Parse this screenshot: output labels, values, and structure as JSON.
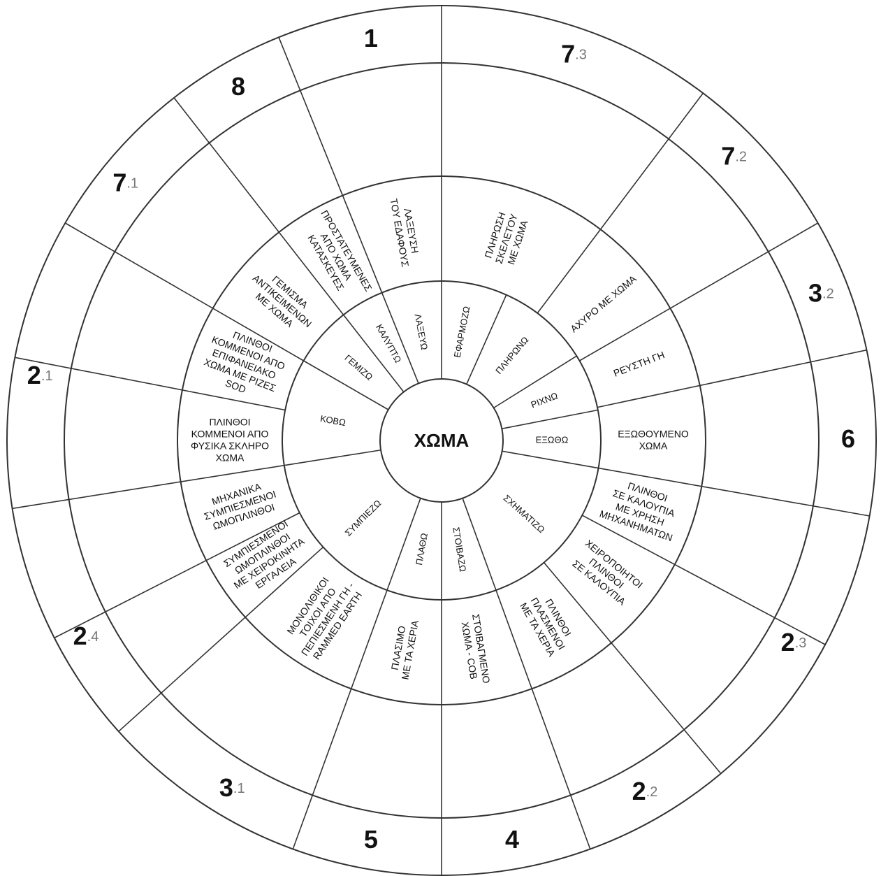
{
  "center": "ΧΩΜΑ",
  "verbs": [
    "ΛΑΞΕΥΩ",
    "ΕΦΑΡΜΟΖΩ",
    "ΠΛΗΡΩΝΩ",
    "ΡΙΧΝΩ",
    "ΕΞΩΘΩ",
    "ΣΧΗΜΑΤΙΖΩ",
    "ΣΤΟΙΒΑΖΩ",
    "ΠΛΑΘΩ",
    "ΣΥΜΠΙΕΖΩ",
    "ΚΟΒΩ",
    "ΓΕΜΙΖΩ",
    "ΚΑΛΥΠΤΩ"
  ],
  "techniques": [
    {
      "lines": [
        "ΛΑΞΕΥΣΗ",
        "ΤΟΥ ΕΔΑΦΟΥΣ"
      ]
    },
    {
      "lines": [
        "ΠΛΗΡΩΣΗ",
        "ΣΚΕΛΕΤΟΥ",
        "ΜΕ ΧΩΜΑ"
      ]
    },
    {
      "lines": [
        "ΑΧΥΡΟ ΜΕ ΧΩΜΑ"
      ]
    },
    {
      "lines": [
        "ΡΕΥΣΤΗ ΓΗ"
      ]
    },
    {
      "lines": [
        "ΕΞΩΘΟΥΜΕΝΟ",
        "ΧΩΜΑ"
      ]
    },
    {
      "lines": [
        "ΠΛΙΝΘΟΙ",
        "ΣΕ ΚΑΛΟΥΠΙΑ",
        "ΜΕ ΧΡΗΣΗ",
        "ΜΗΧΑΝΗΜΑΤΩΝ"
      ]
    },
    {
      "lines": [
        "ΧΕΙΡΟΠΟΙΗΤΟΙ",
        "ΠΛΙΝΘΟΙ",
        "ΣΕ ΚΑΛΟΥΠΙΑ"
      ]
    },
    {
      "lines": [
        "ΠΛΙΝΘΟΙ",
        "ΠΛΑΣΜΕΝΟΙ",
        "ΜΕ ΤΑ ΧΕΡΙΑ"
      ]
    },
    {
      "lines": [
        "ΣΤΟΙΒΑΓΜΕΝΟ",
        "ΧΩΜΑ - COB"
      ]
    },
    {
      "lines": [
        "ΠΛΑΣΙΜΟ",
        "ΜΕ ΤΑ ΧΕΡΙΑ"
      ]
    },
    {
      "lines": [
        "ΜΟΝΟΛΙΘΙΚΟΙ",
        "ΤΟΙΧΟΙ ΑΠΟ",
        "ΠΕΠΙΕΣΜΕΝΗ ΓΗ -",
        "RAMMED EARTH"
      ]
    },
    {
      "lines": [
        "ΣΥΜΠΙΕΣΜΕΝΟΙ",
        "ΩΜΟΠΛΙΝΘΟΙ",
        "ΜΕ ΧΕΙΡΟΚΙΝΗΤΑ",
        "ΕΡΓΑΛΕΙΑ"
      ]
    },
    {
      "lines": [
        "ΜΗΧΑΝΙΚΑ",
        "ΣΥΜΠΙΕΣΜΕΝΟΙ",
        "ΩΜΟΠΛΙΝΘΟΙ"
      ]
    },
    {
      "lines": [
        "ΠΛΙΝΘΟΙ",
        "ΚΟΜΜΕΝΟΙ ΑΠΟ",
        "ΦΥΣΙΚΑ ΣΚΛΗΡΟ",
        "ΧΩΜΑ"
      ]
    },
    {
      "lines": [
        "ΠΛΙΝΘΟΙ",
        "ΚΟΜΜΕΝΟΙ ΑΠΟ",
        "ΕΠΙΦΑΝΕΙΑΚΟ",
        "ΧΩΜΑ ΜΕ ΡΙΖΕΣ",
        "SOD"
      ]
    },
    {
      "lines": [
        "ΓΕΜΙΣΜΑ",
        "ΑΝΤΙΚΕΙΜΕΝΩΝ",
        "ΜΕ ΧΩΜΑ"
      ]
    },
    {
      "lines": [
        "ΠΡΟΣΤΑΤΕΥΜΕΝΕΣ",
        "ΑΠΟ ΧΩΜΑ",
        "ΚΑΤΑΣΚΕΥΕΣ"
      ]
    }
  ],
  "numbers": [
    {
      "main": "1"
    },
    {
      "main": "7",
      "sub": ".3"
    },
    {
      "main": "7",
      "sub": ".2"
    },
    {
      "main": "3",
      "sub": ".2"
    },
    {
      "main": "6"
    },
    {
      "main": "2",
      "sub": ".3"
    },
    {
      "main": "2",
      "sub": ".2"
    },
    {
      "main": "4"
    },
    {
      "main": "5"
    },
    {
      "main": "3",
      "sub": ".1"
    },
    {
      "main": "2",
      "sub": ".4"
    },
    {
      "main": "2",
      "sub": ".1"
    },
    {
      "main": "7",
      "sub": ".1"
    },
    {
      "main": "8"
    }
  ]
}
